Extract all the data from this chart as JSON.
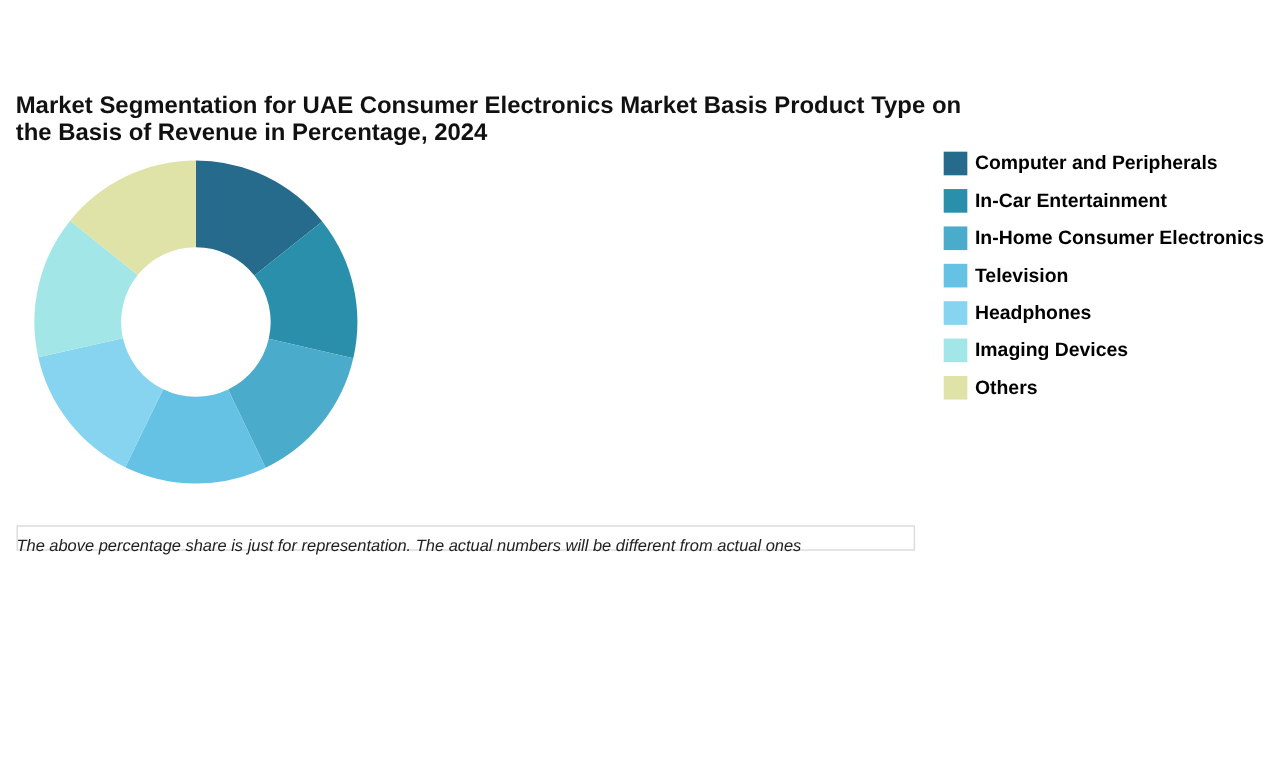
{
  "chart_data": {
    "type": "donut",
    "title": "Market Segmentation for UAE Consumer Electronics Market Basis Product Type on the Basis of Revenue in Percentage, 2024",
    "categories": [
      "Computer and Peripherals",
      "In-Car Entertainment",
      "In-Home Consumer Electronics",
      "Television",
      "Headphones",
      "Imaging Devices",
      "Others"
    ],
    "values": [
      14.3,
      14.3,
      14.3,
      14.3,
      14.3,
      14.3,
      14.2
    ],
    "colors": [
      "#266a8c",
      "#2a8fab",
      "#4aabca",
      "#66c2e4",
      "#86d4ef",
      "#a3e6e8",
      "#e0e3a7"
    ],
    "legend": "right",
    "annotations": [
      "The above percentage share is just for representation. The actual numbers will be different from actual ones"
    ]
  }
}
